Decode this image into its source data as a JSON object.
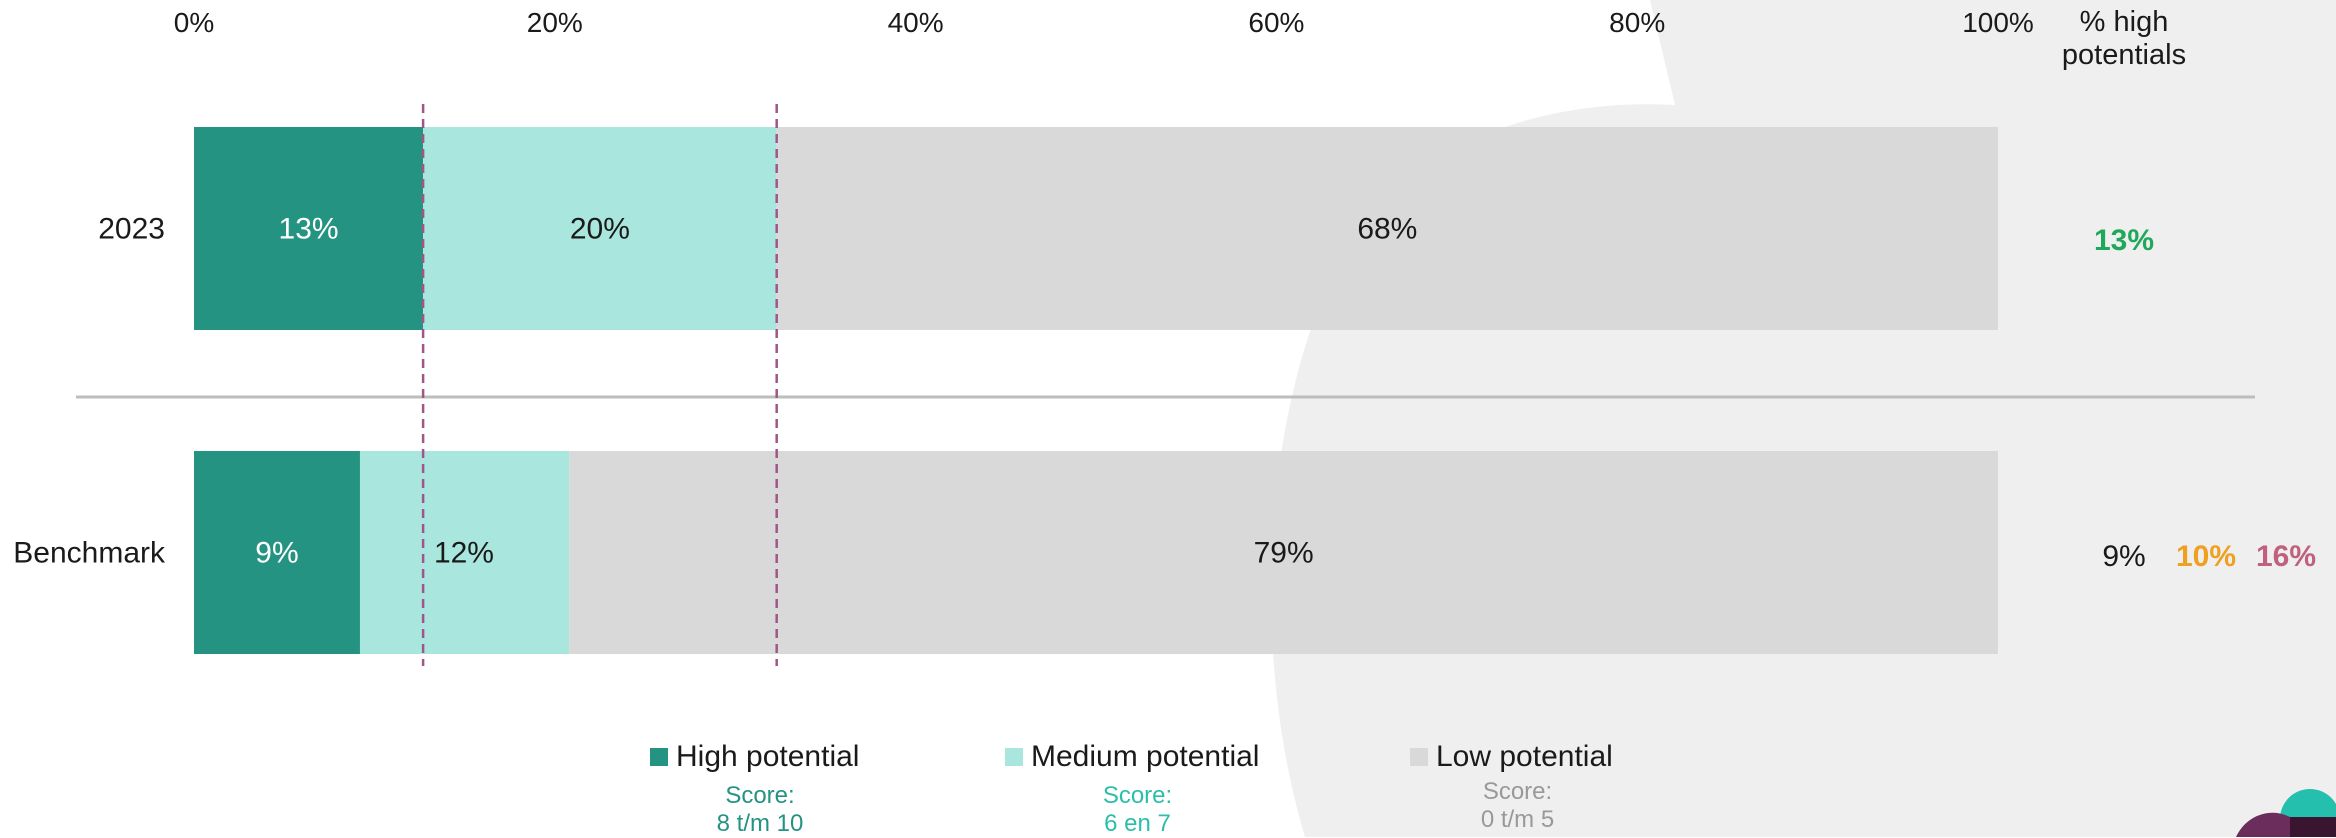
{
  "chart_data": {
    "type": "bar",
    "orientation": "horizontal",
    "stacked": true,
    "x_axis": {
      "ticks": [
        "0%",
        "20%",
        "40%",
        "60%",
        "80%",
        "100%"
      ],
      "range": [
        0,
        100
      ]
    },
    "categories": [
      "2023",
      "Benchmark"
    ],
    "series": [
      {
        "name": "High potential",
        "values": [
          12.7,
          9.2
        ],
        "labels": [
          "13%",
          "9%"
        ],
        "color": "#259382",
        "label_color": "#ffffff"
      },
      {
        "name": "Medium potential",
        "values": [
          19.6,
          11.6
        ],
        "labels": [
          "20%",
          "12%"
        ],
        "color": "#A8E6DE",
        "label_color": "#1a1a1a"
      },
      {
        "name": "Low potential",
        "values": [
          67.7,
          79.2
        ],
        "labels": [
          "68%",
          "79%"
        ],
        "color": "#D9D9D9",
        "label_color": "#1a1a1a"
      }
    ],
    "reference_lines": [
      12.7,
      32.3
    ],
    "reference_line_color": "#A0568A",
    "right_column": {
      "header": [
        "% high",
        "potentials"
      ],
      "rows": [
        [
          {
            "text": "13%",
            "color": "#1EA85A",
            "bold": true
          }
        ],
        [
          {
            "text": "9%",
            "color": "#1a1a1a",
            "bold": false
          },
          {
            "text": "10%",
            "color": "#F0A020",
            "bold": true
          },
          {
            "text": "16%",
            "color": "#C0607E",
            "bold": true
          }
        ]
      ]
    },
    "legend": [
      {
        "name": "High potential",
        "score_label": "Score:",
        "score_range": "8 t/m 10",
        "color": "#259382",
        "text_color": "#259382"
      },
      {
        "name": "Medium potential",
        "score_label": "Score:",
        "score_range": "6 en 7",
        "color": "#A8E6DE",
        "text_color": "#2BBFAA"
      },
      {
        "name": "Low potential",
        "score_label": "Score:",
        "score_range": "0 t/m 5",
        "color": "#D9D9D9",
        "text_color": "#999999"
      }
    ]
  },
  "colors": {
    "background_shape": "#EFEFEF",
    "separator": "#BDBDBD",
    "corner_teal": "#25BFAD",
    "corner_purple": "#6B2D5C",
    "corner_dark": "#3A1530"
  }
}
